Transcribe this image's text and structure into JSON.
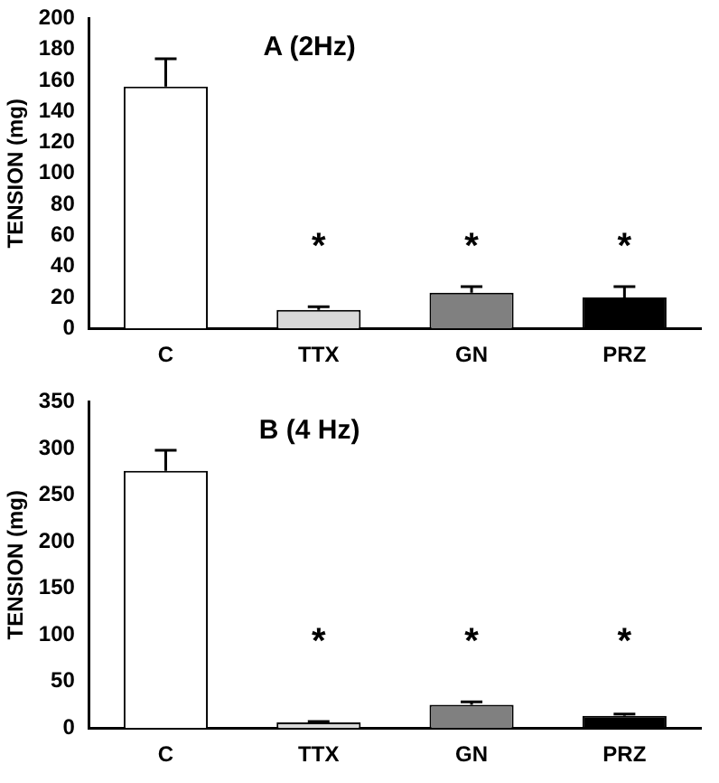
{
  "chart_data": [
    {
      "type": "bar",
      "title": "A (2Hz)",
      "ylabel": "TENSION (mg)",
      "categories": [
        "C",
        "TTX",
        "GN",
        "PRZ"
      ],
      "values": [
        156,
        12,
        23,
        20
      ],
      "errors": [
        18,
        2,
        4,
        7
      ],
      "colors": [
        "#ffffff",
        "#d9d9d9",
        "#808080",
        "#000000"
      ],
      "ylim": [
        0,
        200
      ],
      "yticks": [
        0,
        20,
        40,
        60,
        80,
        100,
        120,
        140,
        160,
        180,
        200
      ],
      "grid": false,
      "legend": false,
      "annotations": [
        "*",
        "*",
        "*"
      ]
    },
    {
      "type": "bar",
      "title": "B (4 Hz)",
      "ylabel": "TENSION (mg)",
      "categories": [
        "C",
        "TTX",
        "GN",
        "PRZ"
      ],
      "values": [
        276,
        6,
        25,
        13
      ],
      "errors": [
        22,
        1,
        3,
        2
      ],
      "colors": [
        "#ffffff",
        "#d9d9d9",
        "#808080",
        "#000000"
      ],
      "ylim": [
        0,
        350
      ],
      "yticks": [
        0,
        50,
        100,
        150,
        200,
        250,
        300,
        350
      ],
      "grid": false,
      "legend": false,
      "annotations": [
        "*",
        "*",
        "*"
      ]
    }
  ]
}
